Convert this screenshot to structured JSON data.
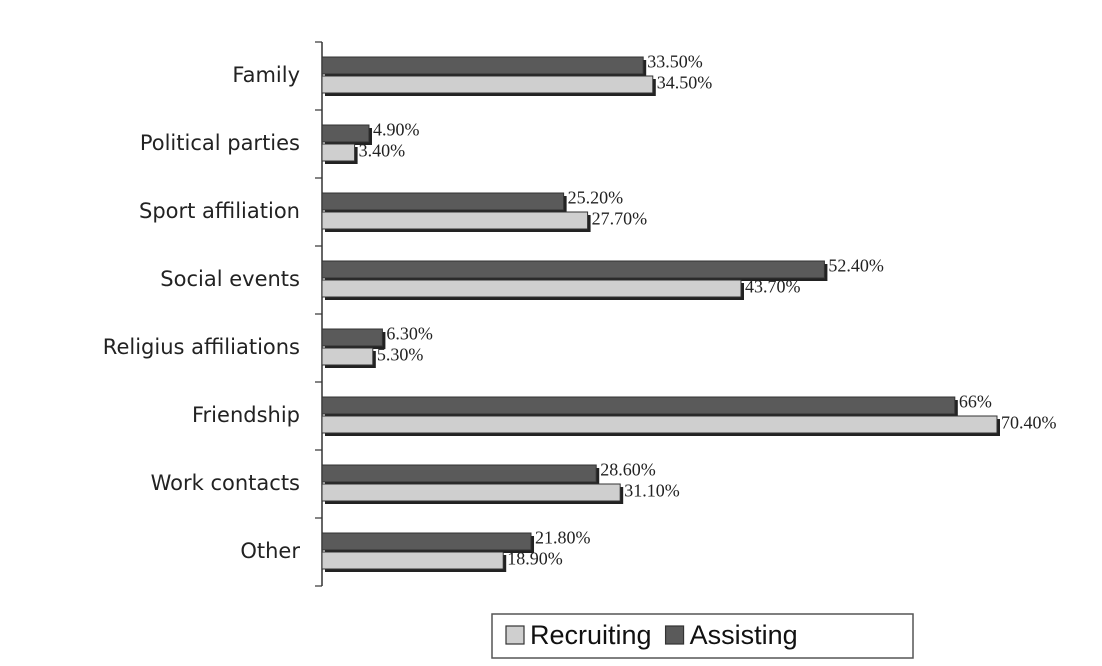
{
  "chart_data": {
    "type": "bar",
    "orientation": "horizontal",
    "categories": [
      "Family",
      "Political parties",
      "Sport affiliation",
      "Social events",
      "Religius affiliations",
      "Friendship",
      "Work contacts",
      "Other"
    ],
    "series": [
      {
        "name": "Recruiting",
        "color": "#cfcfcf",
        "values": [
          34.5,
          3.4,
          27.7,
          43.7,
          5.3,
          70.4,
          31.1,
          18.9
        ],
        "value_labels": [
          "34.50%",
          "3.40%",
          "27.70%",
          "43.70%",
          "5.30%",
          "70.40%",
          "31.10%",
          "18.90%"
        ]
      },
      {
        "name": "Assisting",
        "color": "#5a5a5a",
        "values": [
          33.5,
          4.9,
          25.2,
          52.4,
          6.3,
          66,
          28.6,
          21.8
        ],
        "value_labels": [
          "33.50%",
          "4.90%",
          "25.20%",
          "52.40%",
          "6.30%",
          "66%",
          "28.60%",
          "21.80%"
        ]
      }
    ],
    "legend": "bottom"
  }
}
